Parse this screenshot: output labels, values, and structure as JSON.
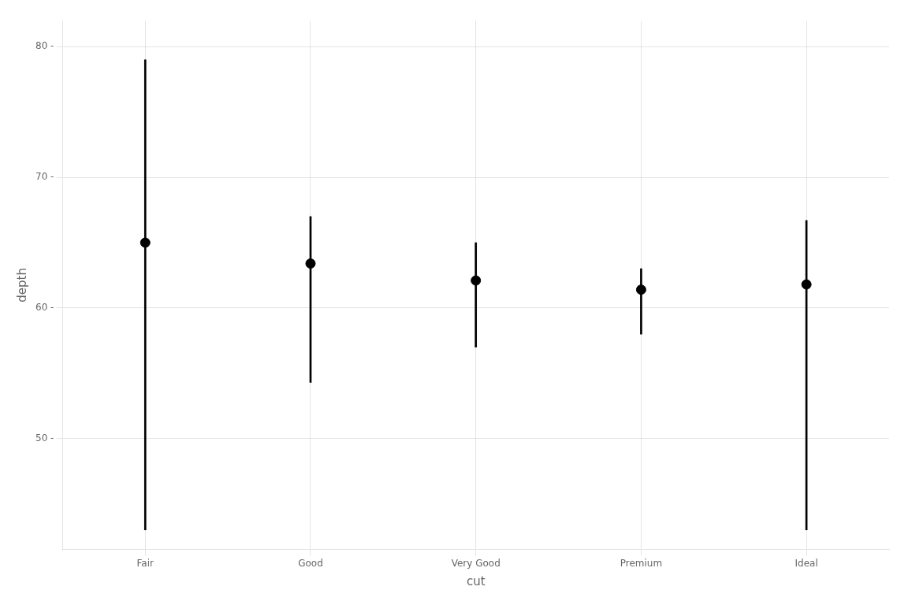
{
  "chart_data": {
    "type": "range",
    "categories": [
      "Fair",
      "Good",
      "Very Good",
      "Premium",
      "Ideal"
    ],
    "values": [
      65.0,
      63.4,
      62.1,
      61.4,
      61.8
    ],
    "min": [
      43.0,
      54.3,
      57.0,
      58.0,
      43.0
    ],
    "max": [
      79.0,
      67.0,
      65.0,
      63.0,
      66.7
    ],
    "color": "#000000",
    "xlabel": "cut",
    "ylabel": "depth",
    "ylim": [
      41.5,
      82
    ],
    "yticks": [
      {
        "value": 50,
        "label": "50 -"
      },
      {
        "value": 60,
        "label": "60 -"
      },
      {
        "value": 70,
        "label": "70 -"
      },
      {
        "value": 80,
        "label": "80 -"
      }
    ],
    "grid": true
  }
}
